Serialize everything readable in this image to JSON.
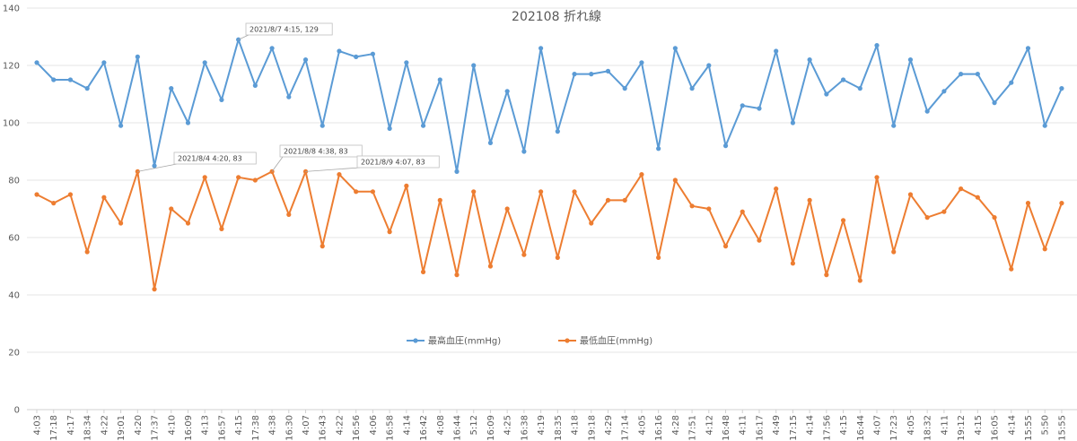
{
  "chart_data": {
    "type": "line",
    "title": "202108  折れ線",
    "xlabel": "",
    "ylabel": "",
    "ylim": [
      0,
      140
    ],
    "yticks": [
      0,
      20,
      40,
      60,
      80,
      100,
      120,
      140
    ],
    "grid": true,
    "legend_position": "inside-lower-center",
    "categories": [
      "4:03",
      "17:18",
      "4:17",
      "18:34",
      "4:22",
      "19:01",
      "4:20",
      "17:37",
      "4:10",
      "16:09",
      "4:13",
      "16:57",
      "4:15",
      "17:38",
      "4:38",
      "16:30",
      "4:07",
      "16:43",
      "4:22",
      "16:56",
      "4:06",
      "16:58",
      "4:14",
      "16:42",
      "4:08",
      "16:44",
      "5:12",
      "16:09",
      "4:25",
      "16:38",
      "4:19",
      "18:35",
      "4:18",
      "19:18",
      "4:29",
      "17:14",
      "4:05",
      "16:16",
      "4:28",
      "17:51",
      "4:12",
      "16:48",
      "4:11",
      "16:17",
      "4:49",
      "17:15",
      "4:14",
      "17:56",
      "4:15",
      "16:44",
      "4:07",
      "17:23",
      "4:05",
      "18:32",
      "4:11",
      "19:12",
      "4:15",
      "16:05",
      "4:14",
      "15:55",
      "5:50",
      "15:55"
    ],
    "series": [
      {
        "name": "最高血圧(mmHg)",
        "color": "#5B9BD5",
        "values": [
          121,
          115,
          115,
          112,
          121,
          99,
          123,
          85,
          112,
          100,
          121,
          108,
          129,
          113,
          126,
          109,
          122,
          99,
          125,
          123,
          124,
          98,
          121,
          99,
          115,
          83,
          120,
          93,
          111,
          90,
          126,
          97,
          117,
          117,
          118,
          112,
          121,
          91,
          126,
          112,
          120,
          92,
          106,
          105,
          125,
          100,
          122,
          110,
          115,
          112,
          127,
          99,
          122,
          104,
          111,
          117,
          117,
          107,
          114,
          126,
          99,
          112
        ]
      },
      {
        "name": "最低血圧(mmHg)",
        "color": "#ED7D31",
        "values": [
          75,
          72,
          75,
          55,
          74,
          65,
          83,
          42,
          70,
          65,
          81,
          63,
          81,
          80,
          83,
          68,
          83,
          57,
          82,
          76,
          76,
          62,
          78,
          48,
          73,
          47,
          76,
          50,
          70,
          54,
          76,
          53,
          76,
          65,
          73,
          73,
          82,
          53,
          80,
          71,
          70,
          57,
          69,
          59,
          77,
          51,
          73,
          47,
          66,
          45,
          81,
          55,
          75,
          67,
          69,
          77,
          74,
          67,
          49,
          72,
          56,
          72
        ]
      }
    ],
    "annotations": [
      {
        "text": "2021/8/7 4:15, 129",
        "series": 0,
        "index": 12
      },
      {
        "text": "2021/8/4 4:20, 83",
        "series": 1,
        "index": 6
      },
      {
        "text": "2021/8/8 4:38, 83",
        "series": 1,
        "index": 14
      },
      {
        "text": "2021/8/9 4:07, 83",
        "series": 1,
        "index": 16
      }
    ]
  }
}
